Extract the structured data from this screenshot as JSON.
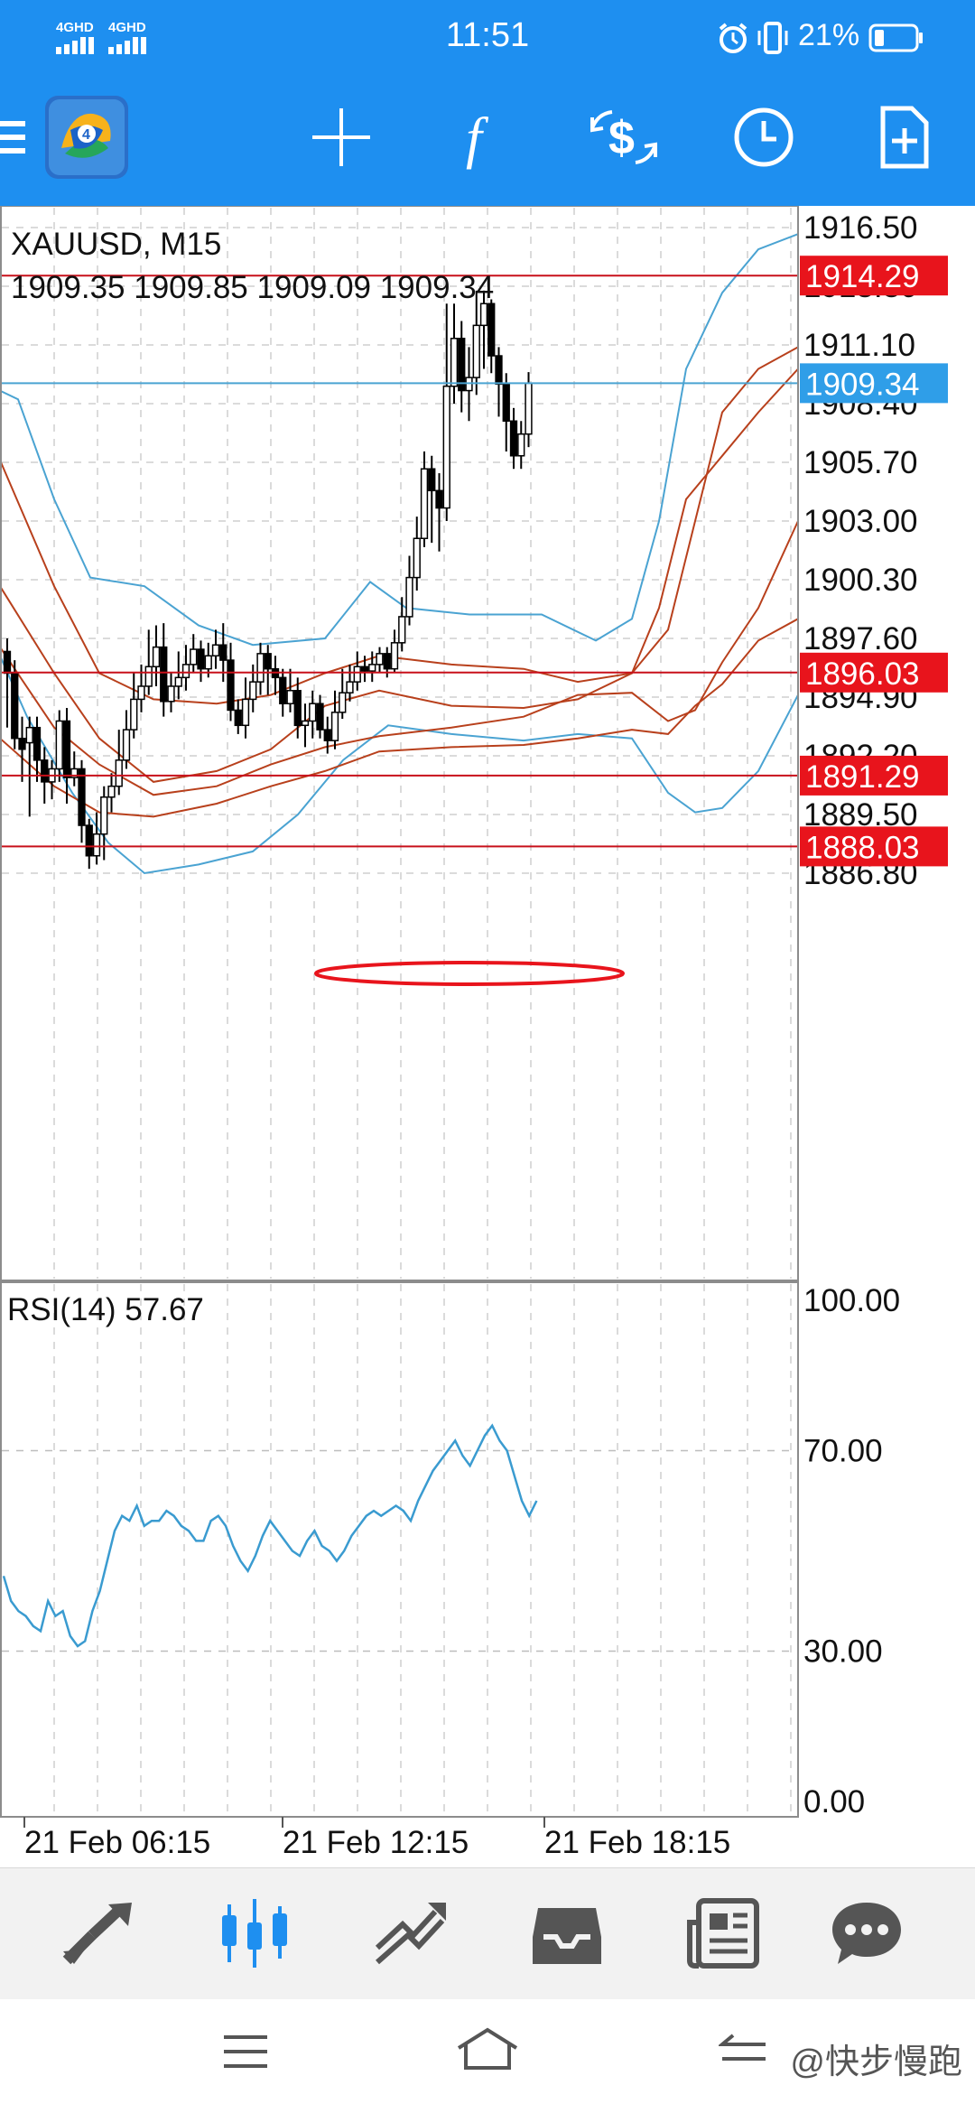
{
  "status_bar": {
    "signal_1": "4GHD",
    "signal_2": "4GHD",
    "time": "11:51",
    "battery": "21%"
  },
  "toolbar": {
    "icons": [
      "menu-icon",
      "metatrader-logo",
      "crosshair-icon",
      "function-icon",
      "trade-icon",
      "clock-icon",
      "new-document-icon"
    ]
  },
  "chart": {
    "symbol_line": "XAUUSD, M15",
    "ohlc_line": "1909.35 1909.85 1909.09 1909.34",
    "price_labels": [
      "1916.50",
      "1913.80",
      "1911.10",
      "1908.40",
      "1905.70",
      "1903.00",
      "1900.30",
      "1897.60",
      "1894.90",
      "1892.20",
      "1889.50",
      "1886.80"
    ],
    "level_tags": [
      {
        "label": "1914.29",
        "value": 1914.29,
        "color": "#e8141c"
      },
      {
        "label": "1909.34",
        "value": 1909.34,
        "color": "#2f9ee8"
      },
      {
        "label": "1896.03",
        "value": 1896.03,
        "color": "#e8141c"
      },
      {
        "label": "1891.29",
        "value": 1891.29,
        "color": "#e8141c"
      },
      {
        "label": "1888.03",
        "value": 1888.03,
        "color": "#e8141c"
      }
    ],
    "rsi_label": "RSI(14) 57.67",
    "rsi_labels": [
      "100.00",
      "70.00",
      "30.00",
      "0.00"
    ],
    "time_labels": [
      "21 Feb 06:15",
      "21 Feb 12:15",
      "21 Feb 18:15"
    ],
    "colors": {
      "bollinger": "#4aa3d2",
      "envelope": "#b8401c",
      "level": "#c8101a",
      "rsi": "#3a9bd0",
      "candle": "#000000"
    }
  },
  "bottom_nav": {
    "items": [
      "quotes-icon",
      "chart-icon",
      "trade-icon",
      "history-icon",
      "news-icon",
      "messages-icon"
    ],
    "active": "chart-icon"
  },
  "watermark": "@快步慢跑"
}
